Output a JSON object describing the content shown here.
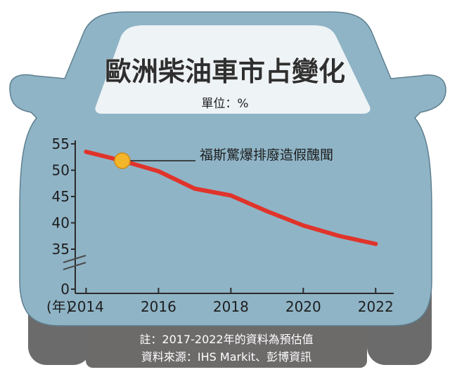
{
  "colors": {
    "car_body": "#8fb4c6",
    "windshield": "#eef3f6",
    "tire": "#6b6b6b",
    "bumper": "#6d6a6a",
    "line": "#e0342b",
    "marker": "#f3b52a",
    "axis": "#2b2b2b"
  },
  "chart_data": {
    "type": "line",
    "title": "歐洲柴油車市占變化",
    "unit_label": "單位：%",
    "x_unit_label": "(年)",
    "x": [
      2014,
      2015,
      2016,
      2017,
      2018,
      2019,
      2020,
      2021,
      2022
    ],
    "values": [
      53.5,
      51.8,
      49.8,
      46.5,
      45.2,
      42.2,
      39.5,
      37.5,
      36.0
    ],
    "xlim": [
      2013.7,
      2022.5
    ],
    "ylim": [
      30,
      55
    ],
    "y_ticks": [
      0,
      35,
      40,
      45,
      50,
      55
    ],
    "y_axis_break": true,
    "x_ticks": [
      2014,
      2016,
      2018,
      2020,
      2022
    ],
    "x_tick_labels": [
      "2014",
      "2016",
      "2018",
      "2020",
      "2022"
    ],
    "y_tick_labels": [
      "0",
      "35",
      "40",
      "45",
      "50",
      "55"
    ],
    "grid": false,
    "annotation": {
      "text": "福斯驚爆排廢造假醜聞",
      "x": 2015,
      "y": 51.8
    }
  },
  "footer": {
    "note": "註：2017-2022年的資料為預估值",
    "source": "資料來源：IHS Markit、彭博資訊"
  }
}
